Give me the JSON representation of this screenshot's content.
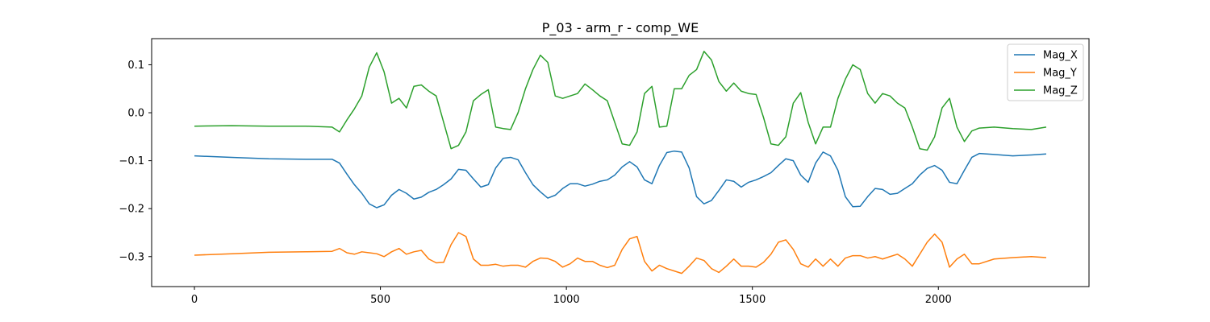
{
  "chart_data": {
    "type": "line",
    "title": "P_03 - arm_r - comp_WE",
    "xlabel": "",
    "ylabel": "",
    "xlim": [
      -115,
      2405
    ],
    "ylim": [
      -0.3625,
      0.1545
    ],
    "xticks": [
      0,
      500,
      1000,
      1500,
      2000
    ],
    "yticks": [
      -0.3,
      -0.2,
      -0.1,
      0.0,
      0.1
    ],
    "ytick_labels": [
      "−0.3",
      "−0.2",
      "−0.1",
      "0.0",
      "0.1"
    ],
    "grid": false,
    "legend_position": "top-right",
    "series": [
      {
        "name": "Mag_X",
        "color": "#1f77b4",
        "points": [
          [
            0,
            -0.09
          ],
          [
            100,
            -0.093
          ],
          [
            200,
            -0.096
          ],
          [
            300,
            -0.097
          ],
          [
            370,
            -0.097
          ],
          [
            390,
            -0.105
          ],
          [
            410,
            -0.128
          ],
          [
            430,
            -0.15
          ],
          [
            450,
            -0.168
          ],
          [
            470,
            -0.19
          ],
          [
            490,
            -0.198
          ],
          [
            510,
            -0.192
          ],
          [
            530,
            -0.172
          ],
          [
            550,
            -0.16
          ],
          [
            570,
            -0.168
          ],
          [
            590,
            -0.18
          ],
          [
            610,
            -0.176
          ],
          [
            630,
            -0.166
          ],
          [
            650,
            -0.16
          ],
          [
            670,
            -0.15
          ],
          [
            690,
            -0.138
          ],
          [
            710,
            -0.118
          ],
          [
            730,
            -0.12
          ],
          [
            750,
            -0.138
          ],
          [
            770,
            -0.155
          ],
          [
            790,
            -0.15
          ],
          [
            810,
            -0.115
          ],
          [
            830,
            -0.095
          ],
          [
            850,
            -0.093
          ],
          [
            870,
            -0.098
          ],
          [
            890,
            -0.125
          ],
          [
            910,
            -0.15
          ],
          [
            930,
            -0.165
          ],
          [
            950,
            -0.178
          ],
          [
            970,
            -0.172
          ],
          [
            990,
            -0.158
          ],
          [
            1010,
            -0.148
          ],
          [
            1030,
            -0.148
          ],
          [
            1050,
            -0.153
          ],
          [
            1070,
            -0.149
          ],
          [
            1090,
            -0.143
          ],
          [
            1110,
            -0.14
          ],
          [
            1130,
            -0.13
          ],
          [
            1150,
            -0.113
          ],
          [
            1170,
            -0.102
          ],
          [
            1190,
            -0.113
          ],
          [
            1210,
            -0.14
          ],
          [
            1230,
            -0.148
          ],
          [
            1250,
            -0.11
          ],
          [
            1270,
            -0.083
          ],
          [
            1290,
            -0.08
          ],
          [
            1310,
            -0.082
          ],
          [
            1330,
            -0.115
          ],
          [
            1350,
            -0.175
          ],
          [
            1370,
            -0.19
          ],
          [
            1390,
            -0.183
          ],
          [
            1410,
            -0.162
          ],
          [
            1430,
            -0.14
          ],
          [
            1450,
            -0.143
          ],
          [
            1470,
            -0.155
          ],
          [
            1490,
            -0.145
          ],
          [
            1510,
            -0.14
          ],
          [
            1530,
            -0.133
          ],
          [
            1550,
            -0.125
          ],
          [
            1570,
            -0.11
          ],
          [
            1590,
            -0.096
          ],
          [
            1610,
            -0.1
          ],
          [
            1630,
            -0.13
          ],
          [
            1650,
            -0.145
          ],
          [
            1670,
            -0.105
          ],
          [
            1690,
            -0.082
          ],
          [
            1710,
            -0.09
          ],
          [
            1730,
            -0.12
          ],
          [
            1750,
            -0.175
          ],
          [
            1770,
            -0.196
          ],
          [
            1790,
            -0.195
          ],
          [
            1810,
            -0.175
          ],
          [
            1830,
            -0.158
          ],
          [
            1850,
            -0.16
          ],
          [
            1870,
            -0.17
          ],
          [
            1890,
            -0.168
          ],
          [
            1910,
            -0.158
          ],
          [
            1930,
            -0.148
          ],
          [
            1950,
            -0.13
          ],
          [
            1970,
            -0.116
          ],
          [
            1990,
            -0.11
          ],
          [
            2010,
            -0.12
          ],
          [
            2030,
            -0.145
          ],
          [
            2050,
            -0.148
          ],
          [
            2070,
            -0.12
          ],
          [
            2090,
            -0.093
          ],
          [
            2110,
            -0.085
          ],
          [
            2150,
            -0.087
          ],
          [
            2200,
            -0.09
          ],
          [
            2250,
            -0.088
          ],
          [
            2290,
            -0.086
          ]
        ]
      },
      {
        "name": "Mag_Y",
        "color": "#ff7f0e",
        "points": [
          [
            0,
            -0.297
          ],
          [
            100,
            -0.294
          ],
          [
            200,
            -0.291
          ],
          [
            300,
            -0.29
          ],
          [
            370,
            -0.289
          ],
          [
            390,
            -0.283
          ],
          [
            410,
            -0.292
          ],
          [
            430,
            -0.295
          ],
          [
            450,
            -0.29
          ],
          [
            470,
            -0.292
          ],
          [
            490,
            -0.294
          ],
          [
            510,
            -0.3
          ],
          [
            530,
            -0.29
          ],
          [
            550,
            -0.283
          ],
          [
            570,
            -0.295
          ],
          [
            590,
            -0.29
          ],
          [
            610,
            -0.287
          ],
          [
            630,
            -0.305
          ],
          [
            650,
            -0.313
          ],
          [
            670,
            -0.312
          ],
          [
            690,
            -0.275
          ],
          [
            710,
            -0.25
          ],
          [
            730,
            -0.258
          ],
          [
            750,
            -0.305
          ],
          [
            770,
            -0.318
          ],
          [
            790,
            -0.318
          ],
          [
            810,
            -0.316
          ],
          [
            830,
            -0.32
          ],
          [
            850,
            -0.318
          ],
          [
            870,
            -0.318
          ],
          [
            890,
            -0.322
          ],
          [
            910,
            -0.31
          ],
          [
            930,
            -0.303
          ],
          [
            950,
            -0.304
          ],
          [
            970,
            -0.31
          ],
          [
            990,
            -0.322
          ],
          [
            1010,
            -0.315
          ],
          [
            1030,
            -0.303
          ],
          [
            1050,
            -0.31
          ],
          [
            1070,
            -0.31
          ],
          [
            1090,
            -0.318
          ],
          [
            1110,
            -0.323
          ],
          [
            1130,
            -0.318
          ],
          [
            1150,
            -0.285
          ],
          [
            1170,
            -0.263
          ],
          [
            1190,
            -0.258
          ],
          [
            1210,
            -0.31
          ],
          [
            1230,
            -0.33
          ],
          [
            1250,
            -0.318
          ],
          [
            1270,
            -0.325
          ],
          [
            1290,
            -0.33
          ],
          [
            1310,
            -0.335
          ],
          [
            1330,
            -0.32
          ],
          [
            1350,
            -0.303
          ],
          [
            1370,
            -0.308
          ],
          [
            1390,
            -0.325
          ],
          [
            1410,
            -0.333
          ],
          [
            1430,
            -0.32
          ],
          [
            1450,
            -0.305
          ],
          [
            1470,
            -0.32
          ],
          [
            1490,
            -0.32
          ],
          [
            1510,
            -0.322
          ],
          [
            1530,
            -0.312
          ],
          [
            1550,
            -0.295
          ],
          [
            1570,
            -0.27
          ],
          [
            1590,
            -0.265
          ],
          [
            1610,
            -0.285
          ],
          [
            1630,
            -0.315
          ],
          [
            1650,
            -0.322
          ],
          [
            1670,
            -0.305
          ],
          [
            1690,
            -0.32
          ],
          [
            1710,
            -0.305
          ],
          [
            1730,
            -0.32
          ],
          [
            1750,
            -0.303
          ],
          [
            1770,
            -0.298
          ],
          [
            1790,
            -0.298
          ],
          [
            1810,
            -0.303
          ],
          [
            1830,
            -0.3
          ],
          [
            1850,
            -0.305
          ],
          [
            1870,
            -0.3
          ],
          [
            1890,
            -0.295
          ],
          [
            1910,
            -0.305
          ],
          [
            1930,
            -0.32
          ],
          [
            1950,
            -0.295
          ],
          [
            1970,
            -0.27
          ],
          [
            1990,
            -0.253
          ],
          [
            2010,
            -0.27
          ],
          [
            2030,
            -0.322
          ],
          [
            2050,
            -0.305
          ],
          [
            2070,
            -0.295
          ],
          [
            2090,
            -0.315
          ],
          [
            2110,
            -0.315
          ],
          [
            2150,
            -0.305
          ],
          [
            2200,
            -0.302
          ],
          [
            2250,
            -0.3
          ],
          [
            2290,
            -0.302
          ]
        ]
      },
      {
        "name": "Mag_Z",
        "color": "#2ca02c",
        "points": [
          [
            0,
            -0.028
          ],
          [
            100,
            -0.027
          ],
          [
            200,
            -0.028
          ],
          [
            300,
            -0.028
          ],
          [
            370,
            -0.03
          ],
          [
            390,
            -0.04
          ],
          [
            410,
            -0.015
          ],
          [
            430,
            0.008
          ],
          [
            450,
            0.035
          ],
          [
            470,
            0.095
          ],
          [
            490,
            0.125
          ],
          [
            510,
            0.085
          ],
          [
            530,
            0.02
          ],
          [
            550,
            0.03
          ],
          [
            570,
            0.01
          ],
          [
            590,
            0.055
          ],
          [
            610,
            0.058
          ],
          [
            630,
            0.045
          ],
          [
            650,
            0.035
          ],
          [
            670,
            -0.02
          ],
          [
            690,
            -0.075
          ],
          [
            710,
            -0.068
          ],
          [
            730,
            -0.04
          ],
          [
            750,
            0.025
          ],
          [
            770,
            0.038
          ],
          [
            790,
            0.048
          ],
          [
            810,
            -0.03
          ],
          [
            830,
            -0.033
          ],
          [
            850,
            -0.035
          ],
          [
            870,
            0.0
          ],
          [
            890,
            0.05
          ],
          [
            910,
            0.09
          ],
          [
            930,
            0.12
          ],
          [
            950,
            0.105
          ],
          [
            970,
            0.035
          ],
          [
            990,
            0.03
          ],
          [
            1010,
            0.035
          ],
          [
            1030,
            0.04
          ],
          [
            1050,
            0.06
          ],
          [
            1070,
            0.048
          ],
          [
            1090,
            0.035
          ],
          [
            1110,
            0.025
          ],
          [
            1130,
            -0.02
          ],
          [
            1150,
            -0.065
          ],
          [
            1170,
            -0.068
          ],
          [
            1190,
            -0.04
          ],
          [
            1210,
            0.04
          ],
          [
            1230,
            0.055
          ],
          [
            1250,
            -0.03
          ],
          [
            1270,
            -0.028
          ],
          [
            1290,
            0.05
          ],
          [
            1310,
            0.05
          ],
          [
            1330,
            0.078
          ],
          [
            1350,
            0.09
          ],
          [
            1370,
            0.128
          ],
          [
            1390,
            0.11
          ],
          [
            1410,
            0.065
          ],
          [
            1430,
            0.045
          ],
          [
            1450,
            0.062
          ],
          [
            1470,
            0.045
          ],
          [
            1490,
            0.04
          ],
          [
            1510,
            0.038
          ],
          [
            1530,
            -0.01
          ],
          [
            1550,
            -0.065
          ],
          [
            1570,
            -0.068
          ],
          [
            1590,
            -0.05
          ],
          [
            1610,
            0.02
          ],
          [
            1630,
            0.042
          ],
          [
            1650,
            -0.02
          ],
          [
            1670,
            -0.065
          ],
          [
            1690,
            -0.03
          ],
          [
            1710,
            -0.03
          ],
          [
            1730,
            0.03
          ],
          [
            1750,
            0.07
          ],
          [
            1770,
            0.1
          ],
          [
            1790,
            0.09
          ],
          [
            1810,
            0.04
          ],
          [
            1830,
            0.02
          ],
          [
            1850,
            0.04
          ],
          [
            1870,
            0.035
          ],
          [
            1890,
            0.02
          ],
          [
            1910,
            0.01
          ],
          [
            1930,
            -0.03
          ],
          [
            1950,
            -0.075
          ],
          [
            1970,
            -0.078
          ],
          [
            1990,
            -0.05
          ],
          [
            2010,
            0.01
          ],
          [
            2030,
            0.03
          ],
          [
            2050,
            -0.03
          ],
          [
            2070,
            -0.06
          ],
          [
            2090,
            -0.038
          ],
          [
            2110,
            -0.032
          ],
          [
            2150,
            -0.03
          ],
          [
            2200,
            -0.033
          ],
          [
            2250,
            -0.035
          ],
          [
            2290,
            -0.03
          ]
        ]
      }
    ]
  }
}
